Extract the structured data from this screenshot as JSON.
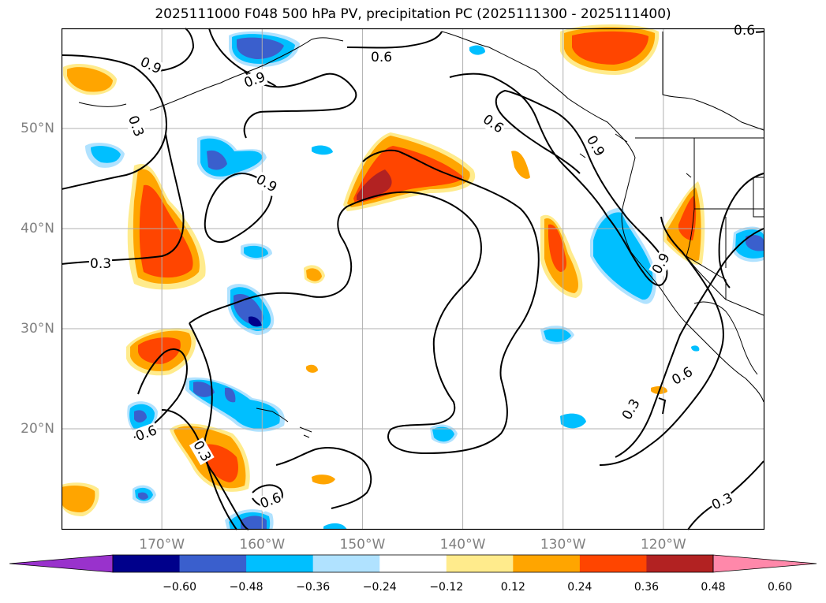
{
  "title": "2025111000 F048 500 hPa PV, precipitation PC (2025111300 - 2025111400)",
  "map": {
    "projection": "equirectangular",
    "lon_range": [
      -180,
      -110
    ],
    "lat_range": [
      10,
      60
    ],
    "gridlines": true,
    "lon_ticks": [
      {
        "value": -170,
        "label": "170°W"
      },
      {
        "value": -160,
        "label": "160°W"
      },
      {
        "value": -150,
        "label": "150°W"
      },
      {
        "value": -140,
        "label": "140°W"
      },
      {
        "value": -130,
        "label": "130°W"
      },
      {
        "value": -120,
        "label": "120°W"
      }
    ],
    "lat_ticks": [
      {
        "value": 20,
        "label": "20°N"
      },
      {
        "value": 30,
        "label": "30°N"
      },
      {
        "value": 40,
        "label": "40°N"
      },
      {
        "value": 50,
        "label": "50°N"
      }
    ],
    "pv_contour_labels": [
      "0.3",
      "0.6",
      "0.9"
    ]
  },
  "colorbar": {
    "ticks": [
      "−0.60",
      "−0.48",
      "−0.36",
      "−0.24",
      "−0.12",
      "0.12",
      "0.24",
      "0.36",
      "0.48",
      "0.60"
    ],
    "colors": [
      "#9932cc",
      "#00008b",
      "#3a5fcd",
      "#00bfff",
      "#b0e2ff",
      "#ffffff",
      "#ffeb8c",
      "#ffa500",
      "#ff4500",
      "#b22222",
      "#ff88aa"
    ],
    "extend": "both"
  },
  "colors": {
    "gridline": "#b0b0b0",
    "contour": "#000000",
    "coastline": "#000000",
    "tick_label": "#808080"
  }
}
